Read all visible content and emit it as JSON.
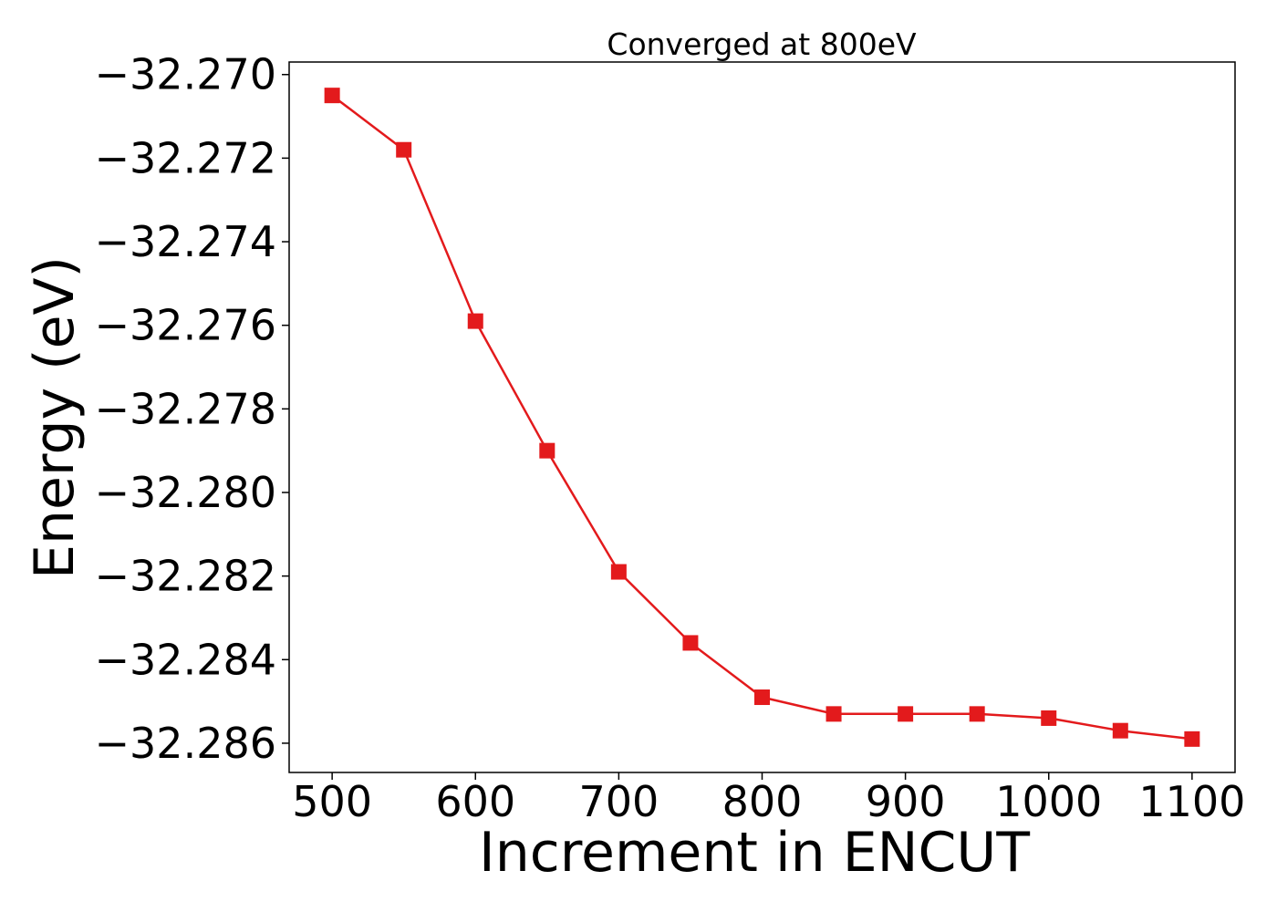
{
  "chart_data": {
    "type": "line",
    "title": "Converged at 800eV",
    "xlabel": "Increment in ENCUT",
    "ylabel": "Energy (eV)",
    "x": [
      500,
      550,
      600,
      650,
      700,
      750,
      800,
      850,
      900,
      950,
      1000,
      1050,
      1100
    ],
    "series": [
      {
        "marker": "square",
        "color": "#e31a1c",
        "values": [
          -32.2705,
          -32.2718,
          -32.2759,
          -32.279,
          -32.2819,
          -32.2836,
          -32.2849,
          -32.2853,
          -32.2853,
          -32.2853,
          -32.2854,
          -32.2857,
          -32.2859
        ]
      }
    ],
    "xlim": [
      470,
      1130
    ],
    "ylim": [
      -32.2867,
      -32.2697
    ],
    "xticks": [
      500,
      600,
      700,
      800,
      900,
      1000,
      1100
    ],
    "xtick_labels": [
      "500",
      "600",
      "700",
      "800",
      "900",
      "1000",
      "1100"
    ],
    "yticks": [
      -32.27,
      -32.272,
      -32.274,
      -32.276,
      -32.278,
      -32.28,
      -32.282,
      -32.284,
      -32.286
    ],
    "ytick_labels": [
      "−32.270",
      "−32.272",
      "−32.274",
      "−32.276",
      "−32.278",
      "−32.280",
      "−32.282",
      "−32.284",
      "−32.286"
    ],
    "grid": false,
    "legend": "none"
  }
}
